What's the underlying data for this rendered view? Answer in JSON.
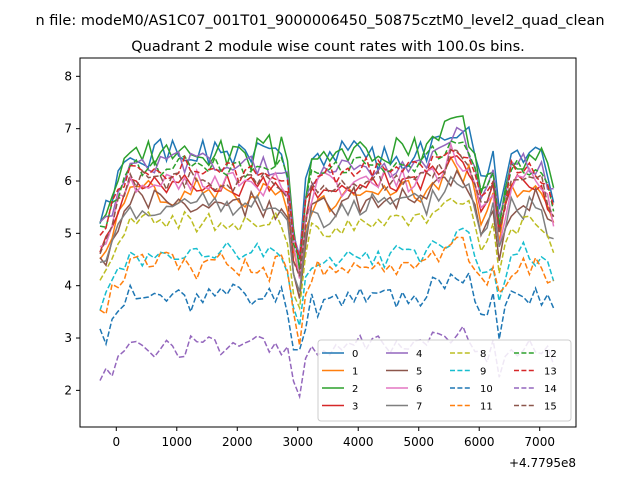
{
  "chart_data": {
    "type": "line",
    "suptitle": "n file: modeM0/AS1C07_001T01_9000006450_50875cztM0_level2_quad_clean",
    "title": "Quadrant 2 module wise count rates with 100.0s bins.",
    "xlabel": "",
    "ylabel": "",
    "x_offset_label": "+4.7795e8",
    "xlim": [
      -600,
      7600
    ],
    "ylim": [
      1.3,
      8.35
    ],
    "x_ticks": [
      0,
      1000,
      2000,
      3000,
      4000,
      5000,
      6000,
      7000
    ],
    "y_ticks": [
      2,
      3,
      4,
      5,
      6,
      7,
      8
    ],
    "grid": false,
    "legend": {
      "placement": "lower-right",
      "columns": 4
    },
    "x": [
      -270,
      2976,
      3056,
      5951,
      6036,
      6338,
      6382,
      7233
    ],
    "series": [
      {
        "name": "0",
        "color": "#1f77b4",
        "dash": "solid",
        "base": 6.5,
        "amp": 0.25,
        "seed": 1
      },
      {
        "name": "1",
        "color": "#ff7f0e",
        "dash": "solid",
        "base": 5.8,
        "amp": 0.22,
        "seed": 2
      },
      {
        "name": "2",
        "color": "#2ca02c",
        "dash": "solid",
        "base": 6.55,
        "amp": 0.25,
        "seed": 3
      },
      {
        "name": "3",
        "color": "#d62728",
        "dash": "solid",
        "base": 5.95,
        "amp": 0.18,
        "seed": 4
      },
      {
        "name": "4",
        "color": "#9467bd",
        "dash": "solid",
        "base": 6.3,
        "amp": 0.22,
        "seed": 5
      },
      {
        "name": "5",
        "color": "#8c564b",
        "dash": "solid",
        "base": 5.6,
        "amp": 0.22,
        "seed": 6
      },
      {
        "name": "6",
        "color": "#e377c2",
        "dash": "solid",
        "base": 6.0,
        "amp": 0.22,
        "seed": 7
      },
      {
        "name": "7",
        "color": "#7f7f7f",
        "dash": "solid",
        "base": 5.5,
        "amp": 0.22,
        "seed": 8
      },
      {
        "name": "8",
        "color": "#bcbd22",
        "dash": "dashed",
        "base": 5.2,
        "amp": 0.18,
        "seed": 9
      },
      {
        "name": "9",
        "color": "#17becf",
        "dash": "dashed",
        "base": 4.6,
        "amp": 0.18,
        "seed": 10
      },
      {
        "name": "10",
        "color": "#1f77b4",
        "dash": "dashed",
        "base": 3.8,
        "amp": 0.22,
        "seed": 11
      },
      {
        "name": "11",
        "color": "#ff7f0e",
        "dash": "dashed",
        "base": 4.4,
        "amp": 0.22,
        "seed": 12
      },
      {
        "name": "12",
        "color": "#2ca02c",
        "dash": "dashed",
        "base": 6.3,
        "amp": 0.18,
        "seed": 13
      },
      {
        "name": "13",
        "color": "#d62728",
        "dash": "dashed",
        "base": 6.2,
        "amp": 0.18,
        "seed": 14
      },
      {
        "name": "14",
        "color": "#9467bd",
        "dash": "dashed",
        "base": 2.85,
        "amp": 0.18,
        "seed": 15
      },
      {
        "name": "15",
        "color": "#8c564b",
        "dash": "dashed",
        "base": 6.0,
        "amp": 0.18,
        "seed": 16
      }
    ]
  }
}
